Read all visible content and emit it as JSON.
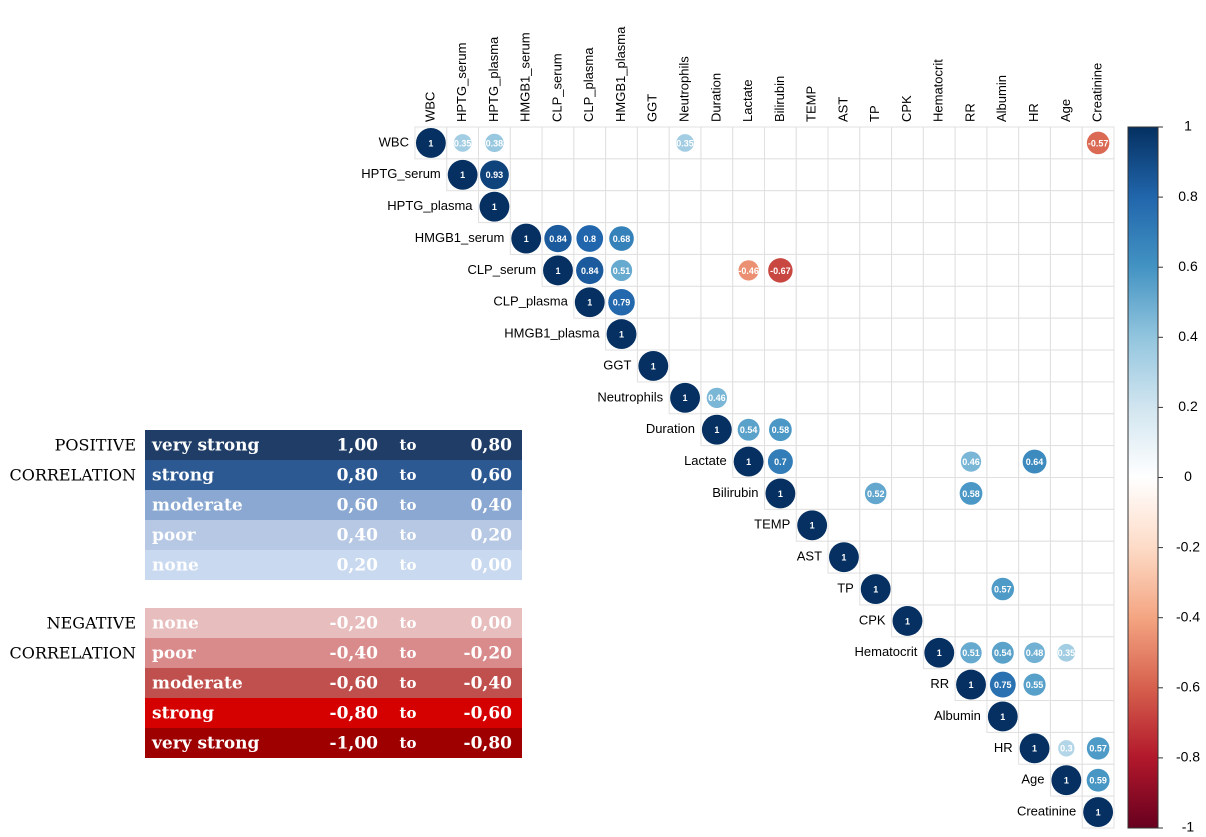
{
  "chart_data": {
    "type": "corrplot",
    "variables": [
      "WBC",
      "HPTG_serum",
      "HPTG_plasma",
      "HMGB1_serum",
      "CLP_serum",
      "CLP_plasma",
      "HMGB1_plasma",
      "GGT",
      "Neutrophils",
      "Duration",
      "Lactate",
      "Bilirubin",
      "TEMP",
      "AST",
      "TP",
      "CPK",
      "Hematocrit",
      "RR",
      "Albumin",
      "HR",
      "Age",
      "Creatinine"
    ],
    "rows": [
      [
        1,
        0.35,
        0.38,
        null,
        null,
        null,
        null,
        null,
        0.35,
        null,
        null,
        null,
        null,
        null,
        null,
        null,
        null,
        null,
        null,
        null,
        null,
        -0.57
      ],
      [
        1,
        0.93,
        null,
        null,
        null,
        null,
        null,
        null,
        null,
        null,
        null,
        null,
        null,
        null,
        null,
        null,
        null,
        null,
        null,
        null,
        null
      ],
      [
        1,
        null,
        null,
        null,
        null,
        null,
        null,
        null,
        null,
        null,
        null,
        null,
        null,
        null,
        null,
        null,
        null,
        null,
        null,
        null
      ],
      [
        1,
        0.84,
        0.8,
        0.68,
        null,
        null,
        null,
        null,
        null,
        null,
        null,
        null,
        null,
        null,
        null,
        null,
        null,
        null,
        null
      ],
      [
        1,
        0.84,
        0.51,
        null,
        null,
        null,
        -0.46,
        -0.67,
        null,
        null,
        null,
        null,
        null,
        null,
        null,
        null,
        null,
        null
      ],
      [
        1,
        0.79,
        null,
        null,
        null,
        null,
        null,
        null,
        null,
        null,
        null,
        null,
        null,
        null,
        null,
        null,
        null
      ],
      [
        1,
        null,
        null,
        null,
        null,
        null,
        null,
        null,
        null,
        null,
        null,
        null,
        null,
        null,
        null,
        null
      ],
      [
        1,
        null,
        null,
        null,
        null,
        null,
        null,
        null,
        null,
        null,
        null,
        null,
        null,
        null,
        null
      ],
      [
        1,
        0.46,
        null,
        null,
        null,
        null,
        null,
        null,
        null,
        null,
        null,
        null,
        null,
        null
      ],
      [
        1,
        0.54,
        0.58,
        null,
        null,
        null,
        null,
        null,
        null,
        null,
        null,
        null,
        null
      ],
      [
        1,
        0.7,
        null,
        null,
        null,
        null,
        null,
        0.46,
        null,
        0.64,
        null,
        null
      ],
      [
        1,
        null,
        null,
        0.52,
        null,
        null,
        0.58,
        null,
        null,
        null,
        null
      ],
      [
        1,
        null,
        null,
        null,
        null,
        null,
        null,
        null,
        null,
        null
      ],
      [
        1,
        null,
        null,
        null,
        null,
        null,
        null,
        null,
        null
      ],
      [
        1,
        null,
        null,
        null,
        0.57,
        null,
        null,
        null
      ],
      [
        1,
        null,
        null,
        null,
        null,
        null,
        null
      ],
      [
        1,
        0.51,
        0.54,
        0.48,
        0.35,
        null
      ],
      [
        1,
        0.75,
        0.55,
        null,
        null
      ],
      [
        1,
        null,
        null,
        null
      ],
      [
        1,
        0.3,
        0.57
      ],
      [
        1,
        0.59
      ],
      [
        1
      ]
    ],
    "colors": [
      "#67001F",
      "#B2182B",
      "#D6604D",
      "#F4A582",
      "#FDDBC7",
      "#FFFFFF",
      "#D1E5F0",
      "#92C5DE",
      "#4393C3",
      "#2166AC",
      "#053061"
    ],
    "ylim": [
      -1,
      1
    ],
    "yticks": [
      -1,
      -0.8,
      -0.6,
      -0.4,
      -0.2,
      0,
      0.2,
      0.4,
      0.6,
      0.8,
      1
    ]
  },
  "legend_table": {
    "groups": [
      {
        "label_lines": [
          "POSITIVE",
          "CORRELATION"
        ],
        "rows": [
          {
            "name": "very strong",
            "from": "1,00",
            "sep": "to",
            "to": "0,80",
            "color": "#1f3d66"
          },
          {
            "name": "strong",
            "from": "0,80",
            "sep": "to",
            "to": "0,60",
            "color": "#2d5993"
          },
          {
            "name": "moderate",
            "from": "0,60",
            "sep": "to",
            "to": "0,40",
            "color": "#8aa8d2"
          },
          {
            "name": "poor",
            "from": "0,40",
            "sep": "to",
            "to": "0,20",
            "color": "#b6c8e4"
          },
          {
            "name": "none",
            "from": "0,20",
            "sep": "to",
            "to": "0,00",
            "color": "#c9d9ef"
          }
        ]
      },
      {
        "label_lines": [
          "NEGATIVE",
          "CORRELATION"
        ],
        "rows": [
          {
            "name": "none",
            "from": "-0,20",
            "sep": "to",
            "to": "0,00",
            "color": "#e8bdbd"
          },
          {
            "name": "poor",
            "from": "-0,40",
            "sep": "to",
            "to": "-0,20",
            "color": "#d98b8b"
          },
          {
            "name": "moderate",
            "from": "-0,60",
            "sep": "to",
            "to": "-0,40",
            "color": "#c0504d"
          },
          {
            "name": "strong",
            "from": "-0,80",
            "sep": "to",
            "to": "-0,60",
            "color": "#d50000"
          },
          {
            "name": "very strong",
            "from": "-1,00",
            "sep": "to",
            "to": "-0,80",
            "color": "#9e0000"
          }
        ]
      }
    ]
  }
}
